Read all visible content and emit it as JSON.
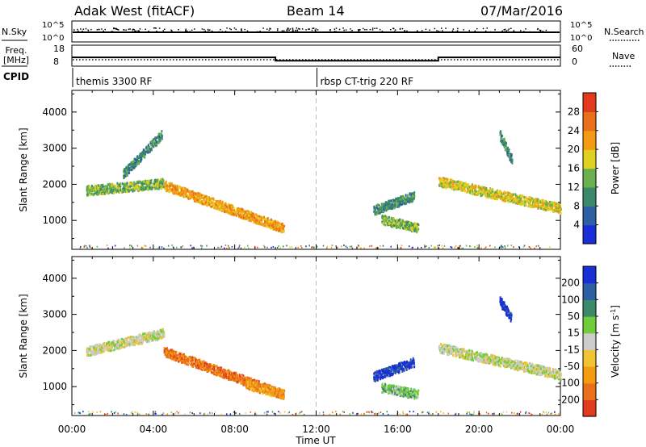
{
  "header": {
    "radar": "Adak West (fitACF)",
    "beam": "Beam 14",
    "date": "07/Mar/2016"
  },
  "top_panels": {
    "nsky_label": "N.Sky",
    "nsearch_label": "N.Search",
    "nsky_ticks": [
      "10^5",
      "10^0"
    ],
    "nsearch_ticks": [
      "10^5",
      "10^0"
    ],
    "freq_label_1": "Freq.",
    "freq_label_2": "[MHz]",
    "freq_ticks": [
      "18",
      "8"
    ],
    "nave_label": "Nave",
    "nave_ticks": [
      "60",
      "0"
    ],
    "cpid_label": "CPID",
    "cpid_segments": [
      {
        "label": "themis 3300 RF",
        "start_hour": 0
      },
      {
        "label": "rbsp CT-trig 220 RF",
        "start_hour": 12
      }
    ],
    "freq_steps": [
      {
        "start_hour": 0,
        "end_hour": 10,
        "mhz": 12.2
      },
      {
        "start_hour": 10,
        "end_hour": 18,
        "mhz": 10.6
      },
      {
        "start_hour": 18,
        "end_hour": 24,
        "mhz": 12.2
      }
    ]
  },
  "chart_data": [
    {
      "type": "heatmap",
      "title": "Power",
      "xlabel": "Time UT",
      "ylabel": "Slant Range [km]",
      "xlim": [
        0,
        24
      ],
      "ylim": [
        200,
        4600
      ],
      "x_tick_labels": [
        "00:00",
        "04:00",
        "08:00",
        "12:00",
        "16:00",
        "20:00",
        "00:00"
      ],
      "y_tick_labels": [
        "1000",
        "2000",
        "3000",
        "4000"
      ],
      "colorbar": {
        "label": "Power [dB]",
        "ticks": [
          "4",
          "8",
          "12",
          "16",
          "20",
          "24",
          "28"
        ],
        "colors": [
          "#1a2ed8",
          "#2d5fa3",
          "#3a8a6a",
          "#6ab04c",
          "#e0d020",
          "#f39c12",
          "#e8701a",
          "#e23a1c"
        ]
      },
      "features": [
        {
          "t0": 0.7,
          "t1": 4.5,
          "r0": 1850,
          "r1": 2050,
          "level": 3
        },
        {
          "t0": 4.5,
          "t1": 10.4,
          "r0": 2000,
          "r1": 800,
          "level": 5
        },
        {
          "t0": 2.5,
          "t1": 4.4,
          "r0": 2300,
          "r1": 3400,
          "level": 2
        },
        {
          "t0": 14.8,
          "t1": 16.8,
          "r0": 1300,
          "r1": 1700,
          "level": 2
        },
        {
          "t0": 15.2,
          "t1": 17.0,
          "r0": 1050,
          "r1": 800,
          "level": 3
        },
        {
          "t0": 18.0,
          "t1": 24.0,
          "r0": 2100,
          "r1": 1350,
          "level": 4
        },
        {
          "t0": 21.0,
          "t1": 21.6,
          "r0": 3400,
          "r1": 2700,
          "level": 2
        }
      ]
    },
    {
      "type": "heatmap",
      "title": "Velocity",
      "xlabel": "Time UT",
      "ylabel": "Slant Range [km]",
      "xlim": [
        0,
        24
      ],
      "ylim": [
        200,
        4600
      ],
      "x_tick_labels": [
        "00:00",
        "04:00",
        "08:00",
        "12:00",
        "16:00",
        "20:00",
        "00:00"
      ],
      "y_tick_labels": [
        "1000",
        "2000",
        "3000",
        "4000"
      ],
      "colorbar": {
        "label": "Velocity [m s-1]",
        "label_main": "Velocity [m s",
        "label_exp": "-1",
        "label_close": "]",
        "ticks": [
          "200",
          "100",
          "50",
          "15",
          "-15",
          "-50",
          "-100",
          "-200"
        ],
        "colors": [
          "#1a2ed8",
          "#2d5fa3",
          "#3a8a6a",
          "#6fcc3a",
          "#cccccc",
          "#f1c232",
          "#f39c12",
          "#e8701a",
          "#e23a1c"
        ]
      },
      "features": [
        {
          "t0": 0.7,
          "t1": 4.5,
          "r0": 2000,
          "r1": 2500,
          "level": 4
        },
        {
          "t0": 4.5,
          "t1": 10.4,
          "r0": 2000,
          "r1": 800,
          "level": 7
        },
        {
          "t0": 8.5,
          "t1": 10.4,
          "r0": 1100,
          "r1": 800,
          "level": 6
        },
        {
          "t0": 14.8,
          "t1": 16.8,
          "r0": 1300,
          "r1": 1700,
          "level": 0
        },
        {
          "t0": 15.2,
          "t1": 17.0,
          "r0": 1000,
          "r1": 800,
          "level": 3
        },
        {
          "t0": 18.0,
          "t1": 24.0,
          "r0": 2100,
          "r1": 1350,
          "level": 4
        },
        {
          "t0": 21.0,
          "t1": 21.6,
          "r0": 3400,
          "r1": 2900,
          "level": 0
        }
      ]
    }
  ]
}
